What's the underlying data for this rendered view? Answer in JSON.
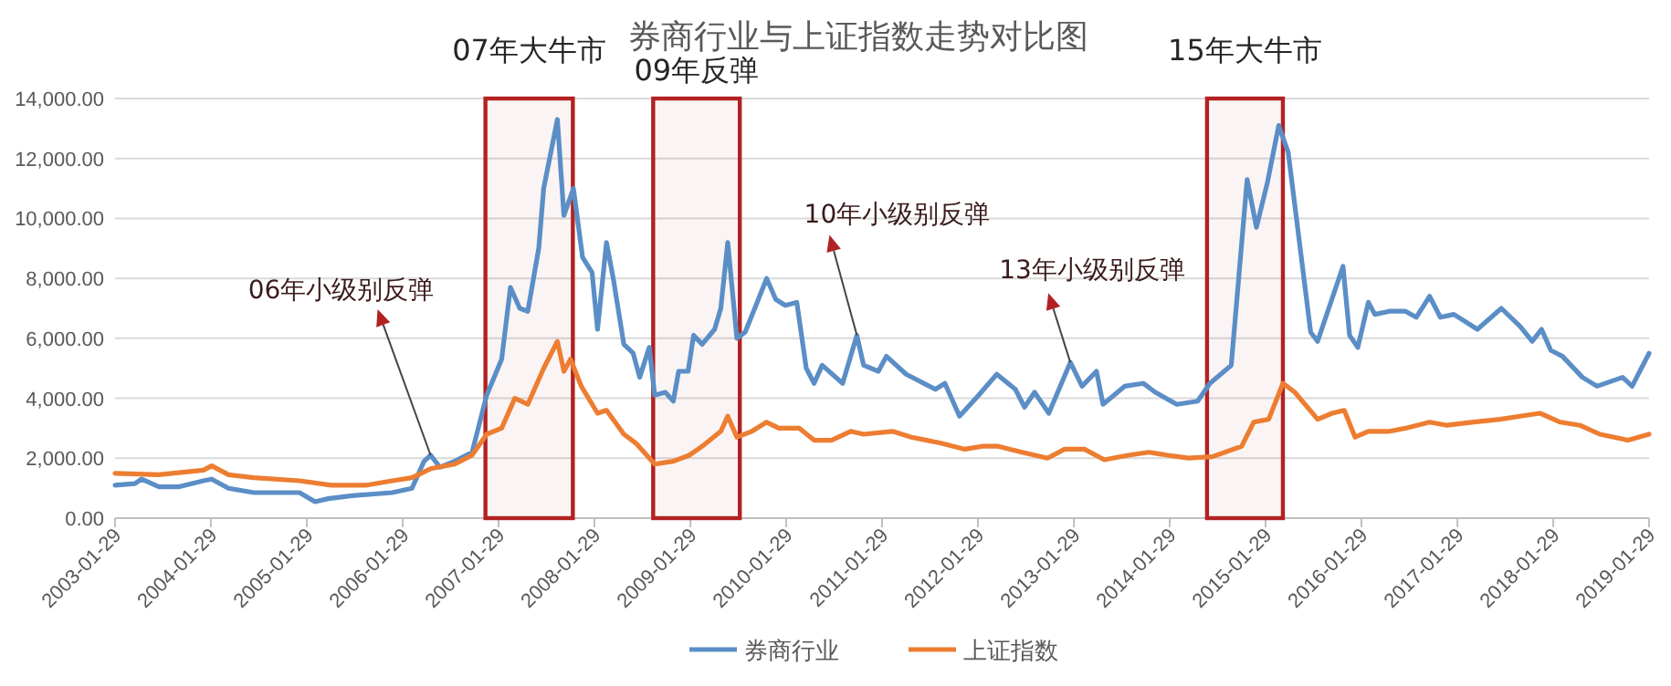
{
  "chart_data": {
    "type": "line",
    "title": "券商行业与上证指数走势对比图",
    "xlim": [
      "2003-01-29",
      "2019-01-29"
    ],
    "xticks": [
      "2003-01-29",
      "2004-01-29",
      "2005-01-29",
      "2006-01-29",
      "2007-01-29",
      "2008-01-29",
      "2009-01-29",
      "2010-01-29",
      "2011-01-29",
      "2012-01-29",
      "2013-01-29",
      "2014-01-29",
      "2015-01-29",
      "2016-01-29",
      "2017-01-29",
      "2018-01-29",
      "2019-01-29"
    ],
    "ylim": [
      0,
      14000
    ],
    "yticks": [
      {
        "value": 0,
        "label": "0.00"
      },
      {
        "value": 2000,
        "label": "2,000.00"
      },
      {
        "value": 4000,
        "label": "4,000.00"
      },
      {
        "value": 6000,
        "label": "6,000.00"
      },
      {
        "value": 8000,
        "label": "8,000.00"
      },
      {
        "value": 10000,
        "label": "10,000.00"
      },
      {
        "value": 12000,
        "label": "12,000.00"
      },
      {
        "value": 14000,
        "label": "14,000.00"
      }
    ],
    "grid": "y",
    "legend": "bottom",
    "line_style": "solid",
    "marker": "none",
    "series": [
      {
        "name": "券商行业",
        "color": "#5b8ec6",
        "x": [
          "2003-01-29",
          "2003-04-15",
          "2003-05-10",
          "2003-07-15",
          "2003-10-01",
          "2004-01-01",
          "2004-02-01",
          "2004-04-05",
          "2004-07-10",
          "2005-01-01",
          "2005-03-01",
          "2005-04-20",
          "2005-07-20",
          "2005-12-20",
          "2006-03-05",
          "2006-04-20",
          "2006-05-15",
          "2006-06-20",
          "2006-08-15",
          "2006-10-20",
          "2006-12-15",
          "2007-02-10",
          "2007-03-15",
          "2007-04-20",
          "2007-05-20",
          "2007-07-01",
          "2007-07-20",
          "2007-09-10",
          "2007-10-05",
          "2007-11-10",
          "2007-12-15",
          "2008-01-20",
          "2008-02-10",
          "2008-03-15",
          "2008-04-10",
          "2008-05-20",
          "2008-06-25",
          "2008-07-20",
          "2008-08-25",
          "2008-09-15",
          "2008-10-25",
          "2008-11-25",
          "2008-12-15",
          "2009-01-20",
          "2009-02-10",
          "2009-03-15",
          "2009-05-01",
          "2009-05-25",
          "2009-06-20",
          "2009-07-25",
          "2009-08-25",
          "2009-10-01",
          "2009-11-15",
          "2009-12-20",
          "2010-01-25",
          "2010-03-10",
          "2010-04-15",
          "2010-05-15",
          "2010-06-15",
          "2010-09-01",
          "2010-10-25",
          "2010-11-20",
          "2011-01-15",
          "2011-02-15",
          "2011-05-01",
          "2011-08-20",
          "2011-09-25",
          "2011-11-20",
          "2012-02-01",
          "2012-04-10",
          "2012-06-20",
          "2012-07-25",
          "2012-09-01",
          "2012-10-25",
          "2013-01-15",
          "2013-03-01",
          "2013-04-25",
          "2013-05-20",
          "2013-08-10",
          "2013-10-20",
          "2013-12-05",
          "2014-02-25",
          "2014-05-15",
          "2014-07-01",
          "2014-09-20",
          "2014-11-20",
          "2014-12-25",
          "2015-02-05",
          "2015-03-20",
          "2015-04-25",
          "2015-07-20",
          "2015-08-15",
          "2015-11-20",
          "2015-12-15",
          "2016-01-15",
          "2016-02-25",
          "2016-03-20",
          "2016-05-15",
          "2016-07-15",
          "2016-08-25",
          "2016-10-15",
          "2016-11-25",
          "2017-01-15",
          "2017-04-15",
          "2017-07-15",
          "2017-09-25",
          "2017-11-10",
          "2017-12-15",
          "2018-01-20",
          "2018-03-05",
          "2018-05-20",
          "2018-07-15",
          "2018-10-20",
          "2018-11-25",
          "2019-01-29"
        ],
        "values": [
          1100,
          1150,
          1300,
          1050,
          1050,
          1250,
          1300,
          1000,
          850,
          850,
          550,
          650,
          750,
          850,
          1000,
          1900,
          2100,
          1700,
          1900,
          2200,
          4100,
          5300,
          7700,
          7000,
          6900,
          9000,
          11000,
          13300,
          10100,
          11000,
          8700,
          8200,
          6300,
          9200,
          8000,
          5800,
          5500,
          4700,
          5700,
          4100,
          4200,
          3900,
          4900,
          4900,
          6100,
          5800,
          6300,
          7000,
          9200,
          6000,
          6200,
          7000,
          8000,
          7300,
          7100,
          7200,
          5000,
          4500,
          5100,
          4500,
          6100,
          5100,
          4900,
          5400,
          4800,
          4300,
          4500,
          3400,
          4100,
          4800,
          4300,
          3700,
          4200,
          3500,
          5200,
          4400,
          4900,
          3800,
          4400,
          4500,
          4200,
          3800,
          3900,
          4500,
          5100,
          11300,
          9700,
          11200,
          13100,
          12200,
          6200,
          5900,
          8400,
          6100,
          5700,
          7200,
          6800,
          6900,
          6900,
          6700,
          7400,
          6700,
          6800,
          6300,
          7000,
          6400,
          5900,
          6300,
          5600,
          5400,
          4700,
          4400,
          4700,
          4400,
          5500
        ]
      },
      {
        "name": "上证指数",
        "color": "#ed7d31",
        "x": [
          "2003-01-29",
          "2003-07-15",
          "2004-01-01",
          "2004-02-01",
          "2004-04-05",
          "2004-07-10",
          "2005-01-01",
          "2005-05-01",
          "2005-09-15",
          "2005-12-20",
          "2006-03-05",
          "2006-05-15",
          "2006-08-15",
          "2006-10-20",
          "2006-12-15",
          "2007-02-10",
          "2007-04-01",
          "2007-05-20",
          "2007-07-20",
          "2007-09-10",
          "2007-10-05",
          "2007-10-30",
          "2007-12-10",
          "2008-02-10",
          "2008-03-15",
          "2008-05-20",
          "2008-07-05",
          "2008-09-15",
          "2008-11-25",
          "2009-01-25",
          "2009-03-15",
          "2009-05-25",
          "2009-06-20",
          "2009-07-25",
          "2009-09-20",
          "2009-11-15",
          "2010-01-01",
          "2010-03-20",
          "2010-05-15",
          "2010-07-20",
          "2010-10-01",
          "2010-11-20",
          "2011-03-10",
          "2011-05-20",
          "2011-09-10",
          "2011-12-10",
          "2012-02-15",
          "2012-04-15",
          "2012-07-15",
          "2012-10-20",
          "2012-12-25",
          "2013-03-10",
          "2013-05-25",
          "2013-08-25",
          "2013-11-10",
          "2014-01-20",
          "2014-04-10",
          "2014-07-10",
          "2014-10-30",
          "2014-12-15",
          "2015-02-10",
          "2015-04-05",
          "2015-05-20",
          "2015-08-15",
          "2015-10-10",
          "2015-11-25",
          "2016-01-05",
          "2016-02-25",
          "2016-05-15",
          "2016-07-15",
          "2016-10-15",
          "2016-12-20",
          "2017-03-25",
          "2017-07-10",
          "2017-09-25",
          "2017-12-10",
          "2018-02-25",
          "2018-05-10",
          "2018-07-25",
          "2018-11-10",
          "2019-01-29"
        ],
        "values": [
          1500,
          1450,
          1600,
          1750,
          1450,
          1350,
          1250,
          1100,
          1100,
          1250,
          1350,
          1650,
          1800,
          2100,
          2800,
          3000,
          4000,
          3800,
          5000,
          5900,
          4900,
          5300,
          4400,
          3500,
          3600,
          2800,
          2500,
          1800,
          1900,
          2100,
          2400,
          2900,
          3400,
          2700,
          2900,
          3200,
          3000,
          3000,
          2600,
          2600,
          2900,
          2800,
          2900,
          2700,
          2500,
          2300,
          2400,
          2400,
          2200,
          2000,
          2300,
          2300,
          1950,
          2100,
          2200,
          2100,
          2000,
          2050,
          2400,
          3200,
          3300,
          4500,
          4200,
          3300,
          3500,
          3600,
          2700,
          2900,
          2900,
          3000,
          3200,
          3100,
          3200,
          3300,
          3400,
          3500,
          3200,
          3100,
          2800,
          2600,
          2800
        ]
      }
    ],
    "bands": [
      {
        "axis": "x",
        "from": "2006-12-10",
        "to": "2007-11-08",
        "label": "07年大牛市",
        "color": "#b22222"
      },
      {
        "axis": "x",
        "from": "2008-09-09",
        "to": "2009-08-05",
        "label": "09年反弹",
        "color": "#b22222"
      },
      {
        "axis": "x",
        "from": "2014-06-20",
        "to": "2015-04-05",
        "label": "15年大牛市",
        "color": "#b22222"
      }
    ],
    "annotations": [
      {
        "text": "06年小级别反弹",
        "x": "2006-05-15",
        "y": 2100
      },
      {
        "text": "10年小级别反弹",
        "x": "2010-10-25",
        "y": 6100
      },
      {
        "text": "13年小级别反弹",
        "x": "2013-01-15",
        "y": 5200
      }
    ]
  }
}
